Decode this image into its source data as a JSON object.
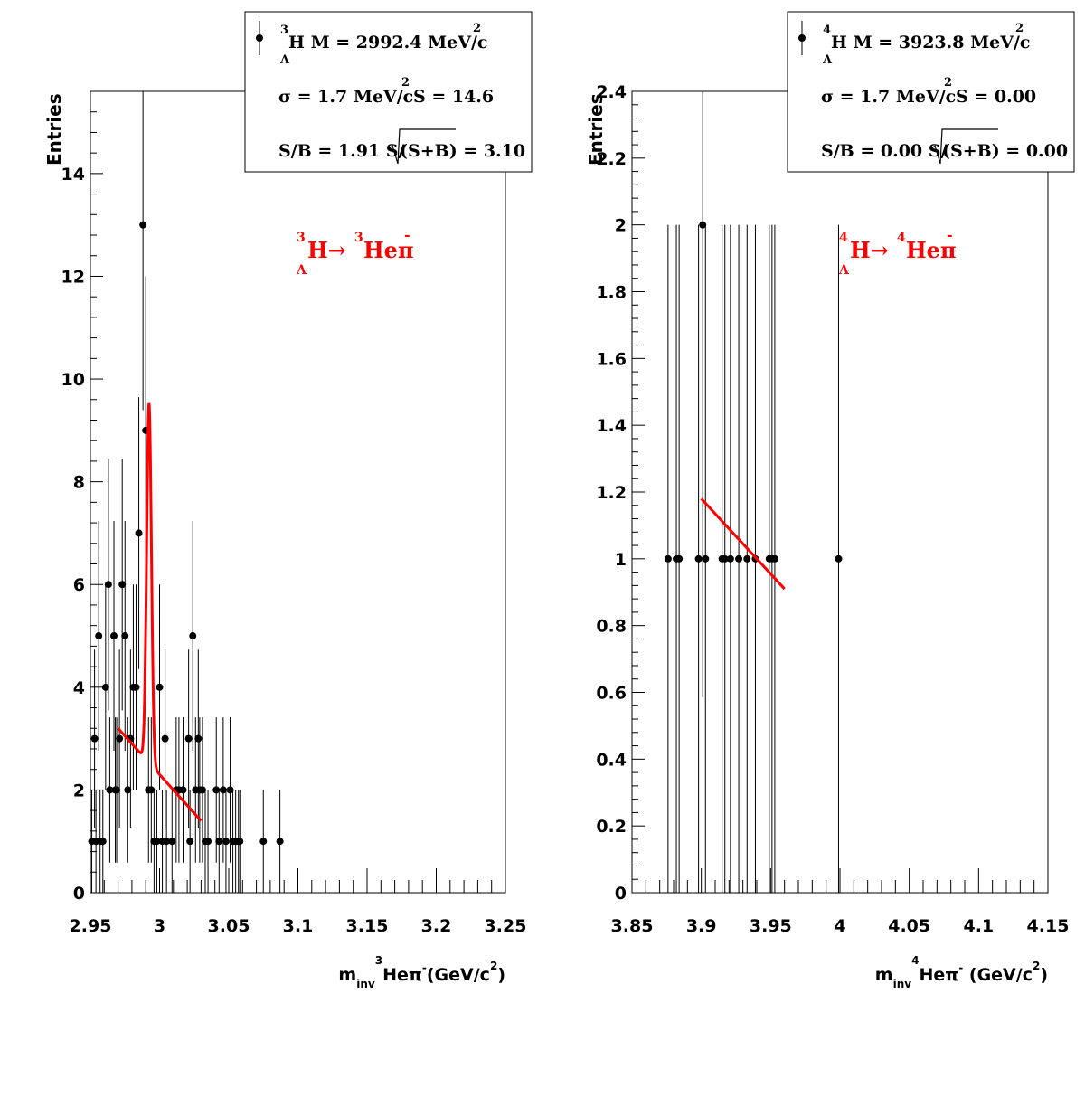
{
  "chart_data": [
    {
      "type": "scatter",
      "ylabel": "Entries",
      "xlabel": {
        "m": "m",
        "sub": "inv",
        "sup": "3",
        "text": "Heπ",
        "minus": "-",
        "unit": "(GeV/c",
        "unit_sup": "2",
        "close": ")"
      },
      "xlim": [
        2.95,
        3.25
      ],
      "ylim": [
        0,
        15.6
      ],
      "xticks": [
        2.95,
        3,
        3.05,
        3.1,
        3.15,
        3.2,
        3.25
      ],
      "xtick_labels": [
        "2.95",
        "3",
        "3.05",
        "3.1",
        "3.15",
        "3.2",
        "3.25"
      ],
      "yticks": [
        0,
        2,
        4,
        6,
        8,
        10,
        12,
        14
      ],
      "ytick_labels": [
        "0",
        "2",
        "4",
        "6",
        "8",
        "10",
        "12",
        "14"
      ],
      "legend": {
        "line1": {
          "pre": "3",
          "sym": "H M = 2992.4 MeV/c",
          "sub": "Λ",
          "sup": "2"
        },
        "line2": {
          "a": "σ = 1.7 MeV/c",
          "sup": "2",
          "b": "S = 14.6"
        },
        "line3": {
          "a": "S/B = 1.91  S/",
          "b": "(S+B) = 3.10"
        }
      },
      "annotation": {
        "sup1": "3",
        "sub1": "Λ",
        "h": "H→",
        "sup2": "3",
        "he": "Heπ",
        "minus": "-"
      },
      "points": [
        [
          2.951,
          1
        ],
        [
          2.953,
          3
        ],
        [
          2.954,
          1
        ],
        [
          2.956,
          5
        ],
        [
          2.957,
          1
        ],
        [
          2.959,
          1
        ],
        [
          2.961,
          4
        ],
        [
          2.963,
          6
        ],
        [
          2.964,
          2
        ],
        [
          2.967,
          5
        ],
        [
          2.968,
          2
        ],
        [
          2.969,
          2
        ],
        [
          2.971,
          3
        ],
        [
          2.973,
          6
        ],
        [
          2.975,
          5
        ],
        [
          2.977,
          2
        ],
        [
          2.979,
          3
        ],
        [
          2.981,
          4
        ],
        [
          2.983,
          4
        ],
        [
          2.985,
          7
        ],
        [
          2.988,
          13
        ],
        [
          2.99,
          9
        ],
        [
          2.992,
          2
        ],
        [
          2.994,
          2
        ],
        [
          2.996,
          1
        ],
        [
          2.998,
          1
        ],
        [
          3.0,
          4
        ],
        [
          3.002,
          1
        ],
        [
          3.004,
          3
        ],
        [
          3.005,
          1
        ],
        [
          3.009,
          1
        ],
        [
          3.012,
          2
        ],
        [
          3.014,
          2
        ],
        [
          3.017,
          2
        ],
        [
          3.021,
          3
        ],
        [
          3.022,
          1
        ],
        [
          3.024,
          5
        ],
        [
          3.026,
          2
        ],
        [
          3.028,
          3
        ],
        [
          3.029,
          2
        ],
        [
          3.031,
          2
        ],
        [
          3.033,
          1
        ],
        [
          3.035,
          1
        ],
        [
          3.041,
          2
        ],
        [
          3.043,
          1
        ],
        [
          3.046,
          2
        ],
        [
          3.048,
          1
        ],
        [
          3.051,
          2
        ],
        [
          3.053,
          1
        ],
        [
          3.055,
          1
        ],
        [
          3.057,
          1
        ],
        [
          3.058,
          1
        ],
        [
          3.075,
          1
        ],
        [
          3.087,
          1
        ]
      ],
      "fit": {
        "color": "#ff0000",
        "x_range": [
          2.97,
          3.03
        ],
        "mean": 2.9924,
        "sigma": 0.0017,
        "amp": 7.0,
        "bg_a": 2.6,
        "bg_slope": -30.0,
        "bg_ref": 2.99
      }
    },
    {
      "type": "scatter",
      "ylabel": "Entries",
      "xlabel": {
        "m": "m",
        "sub": "inv",
        "sup": "4",
        "text": "Heπ",
        "minus": "-",
        "unit": " (GeV/c",
        "unit_sup": "2",
        "close": ")"
      },
      "xlim": [
        3.85,
        4.15
      ],
      "ylim": [
        0,
        2.4
      ],
      "xticks": [
        3.85,
        3.9,
        3.95,
        4,
        4.05,
        4.1,
        4.15
      ],
      "xtick_labels": [
        "3.85",
        "3.9",
        "3.95",
        "4",
        "4.05",
        "4.1",
        "4.15"
      ],
      "yticks": [
        0,
        0.2,
        0.4,
        0.6,
        0.8,
        1,
        1.2,
        1.4,
        1.6,
        1.8,
        2,
        2.2,
        2.4
      ],
      "ytick_labels": [
        "0",
        "0.2",
        "0.4",
        "0.6",
        "0.8",
        "1",
        "1.2",
        "1.4",
        "1.6",
        "1.8",
        "2",
        "2.2",
        "2.4"
      ],
      "legend": {
        "line1": {
          "pre": "4",
          "sym": "H M = 3923.8 MeV/c",
          "sub": "Λ",
          "sup": "2"
        },
        "line2": {
          "a": "σ = 1.7 MeV/c",
          "sup": "2",
          "b": "S = 0.00"
        },
        "line3": {
          "a": "S/B = 0.00  S/",
          "b": "(S+B) = 0.00"
        }
      },
      "annotation": {
        "sup1": "4",
        "sub1": "Λ",
        "h": "H→",
        "sup2": "4",
        "he": "Heπ",
        "minus": "-"
      },
      "points": [
        [
          3.876,
          1
        ],
        [
          3.882,
          1
        ],
        [
          3.884,
          1
        ],
        [
          3.898,
          1
        ],
        [
          3.901,
          2
        ],
        [
          3.903,
          1
        ],
        [
          3.915,
          1
        ],
        [
          3.917,
          1
        ],
        [
          3.921,
          1
        ],
        [
          3.927,
          1
        ],
        [
          3.933,
          1
        ],
        [
          3.939,
          1
        ],
        [
          3.949,
          1
        ],
        [
          3.951,
          1
        ],
        [
          3.953,
          1
        ],
        [
          3.999,
          1
        ]
      ],
      "fit": {
        "color": "#ff0000",
        "x_range": [
          3.9,
          3.96
        ],
        "line": [
          [
            3.9,
            1.18
          ],
          [
            3.96,
            0.91
          ]
        ]
      }
    }
  ]
}
